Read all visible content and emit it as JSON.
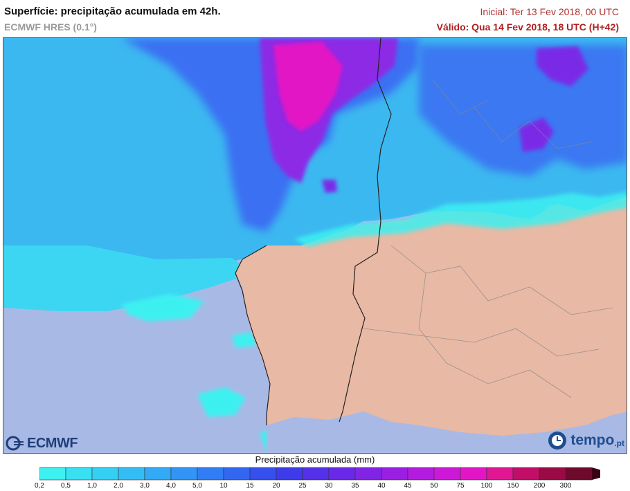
{
  "header": {
    "title": "Superfície: precipitação acumulada em 42h.",
    "subtitle": "ECMWF HRES (0.1°)",
    "initial": "Inicial: Ter 13 Fev 2018, 00 UTC",
    "valid": "Válido: Qua 14 Fev 2018, 18 UTC (H+42)"
  },
  "logos": {
    "left": "ECMWF",
    "right": "tempo",
    "right_domain": ".pt"
  },
  "legend": {
    "title": "Precipitação acumulada (mm)",
    "ticks": [
      "0,2",
      "0,5",
      "1,0",
      "2,0",
      "3,0",
      "4,0",
      "5,0",
      "10",
      "15",
      "20",
      "25",
      "30",
      "35",
      "40",
      "45",
      "50",
      "75",
      "100",
      "150",
      "200",
      "300"
    ],
    "colors": [
      "#3ef0f0",
      "#38e0f2",
      "#36cff4",
      "#34bdf4",
      "#33aaf5",
      "#3294f5",
      "#327df4",
      "#3367f2",
      "#3550ee",
      "#3d3bea",
      "#5530ea",
      "#6a28e8",
      "#8224e6",
      "#9a1fe3",
      "#b31cdf",
      "#cc19d8",
      "#e216c5",
      "#e01693",
      "#c20e66",
      "#9b0a45",
      "#6e0a2c"
    ],
    "arrow_color": "#3a0016"
  },
  "map": {
    "colors": {
      "sea_dry": "#a9b9e6",
      "land_dry": "#e8b9a4",
      "precip_light": "#3cb8f0",
      "precip_low": "#3cf0f0",
      "precip_medium": "#3a70f2",
      "precip_heavy": "#8c2ce6",
      "precip_max": "#e216c5",
      "borders": "#888888",
      "coast": "#222222"
    }
  }
}
